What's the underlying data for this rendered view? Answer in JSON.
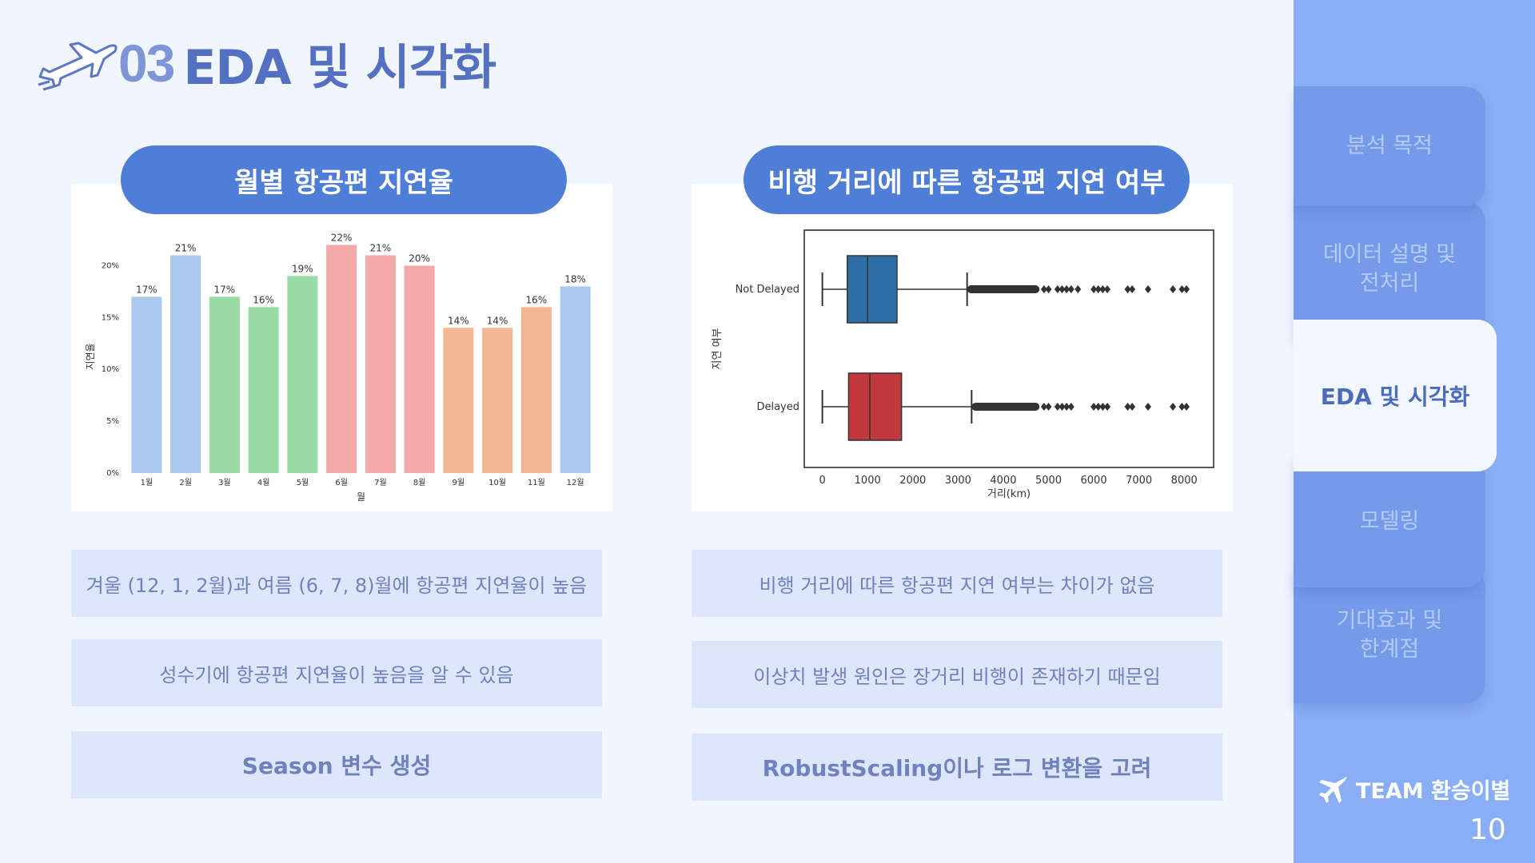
{
  "header": {
    "number": "03",
    "title": "EDA 및 시각화"
  },
  "left_pill": "월별 항공편 지연율",
  "right_pill": "비행 거리에 따른 항공편 지연 여부",
  "left_notes": [
    "겨울 (12, 1, 2월)과 여름 (6, 7, 8)월에 항공편 지연율이 높음",
    "성수기에 항공편 지연율이 높음을 알 수 있음",
    "Season 변수 생성"
  ],
  "right_notes": [
    "비행 거리에 따른 항공편 지연 여부는 차이가 없음",
    "이상치 발생 원인은 장거리 비행이 존재하기 때문임",
    "RobustScaling이나 로그 변환을 고려"
  ],
  "sidebar": {
    "items": [
      "분석 목적",
      "데이터 설명 및\n전처리",
      "EDA 및 시각화",
      "모델링",
      "기대효과 및\n한계점"
    ],
    "active_index": 2,
    "team": "TEAM 환승이별",
    "page": "10"
  },
  "colors": {
    "winter": "#abc8ee",
    "spring": "#98dba5",
    "summer": "#f3aaa8",
    "autumn": "#f2b791",
    "pill": "#4f7ed6",
    "sidebar": "#8aaef5",
    "box_not_delayed": "#2d6fa6",
    "box_delayed": "#c0393d"
  },
  "chart_data": [
    {
      "type": "bar",
      "categories": [
        "1월",
        "2월",
        "3월",
        "4월",
        "5월",
        "6월",
        "7월",
        "8월",
        "9월",
        "10월",
        "11월",
        "12월"
      ],
      "values": [
        17,
        21,
        17,
        16,
        19,
        22,
        21,
        20,
        14,
        14,
        16,
        18
      ],
      "data_labels": [
        "17%",
        "21%",
        "17%",
        "16%",
        "19%",
        "22%",
        "21%",
        "20%",
        "14%",
        "14%",
        "16%",
        "18%"
      ],
      "season_colors": [
        "winter",
        "winter",
        "spring",
        "spring",
        "spring",
        "summer",
        "summer",
        "summer",
        "autumn",
        "autumn",
        "autumn",
        "winter"
      ],
      "title": "",
      "xlabel": "월",
      "ylabel": "지연율",
      "yticks": [
        "0%",
        "5%",
        "10%",
        "15%",
        "20%"
      ],
      "ylim": [
        0,
        22.5
      ],
      "grid": false
    },
    {
      "type": "box",
      "orientation": "horizontal",
      "categories": [
        "Not Delayed",
        "Delayed"
      ],
      "xlabel": "거리(km)",
      "ylabel": "지연 여부",
      "xticks": [
        0,
        1000,
        2000,
        3000,
        4000,
        5000,
        6000,
        7000,
        8000
      ],
      "xlim": [
        -400,
        8650
      ],
      "series": [
        {
          "name": "Not Delayed",
          "whisker_low": 0,
          "q1": 550,
          "median": 1000,
          "q3": 1650,
          "whisker_high": 3200,
          "outlier_band": [
            3200,
            4800
          ],
          "outliers": [
            4900,
            5000,
            5200,
            5300,
            5400,
            5500,
            5650,
            6000,
            6100,
            6200,
            6300,
            6750,
            6850,
            7200,
            7750,
            7950,
            8050
          ]
        },
        {
          "name": "Delayed",
          "whisker_low": 0,
          "q1": 580,
          "median": 1050,
          "q3": 1750,
          "whisker_high": 3300,
          "outlier_band": [
            3300,
            4800
          ],
          "outliers": [
            4900,
            5000,
            5200,
            5300,
            5400,
            5500,
            6000,
            6100,
            6200,
            6300,
            6750,
            6850,
            7200,
            7750,
            7950,
            8050
          ]
        }
      ],
      "grid": false
    }
  ]
}
